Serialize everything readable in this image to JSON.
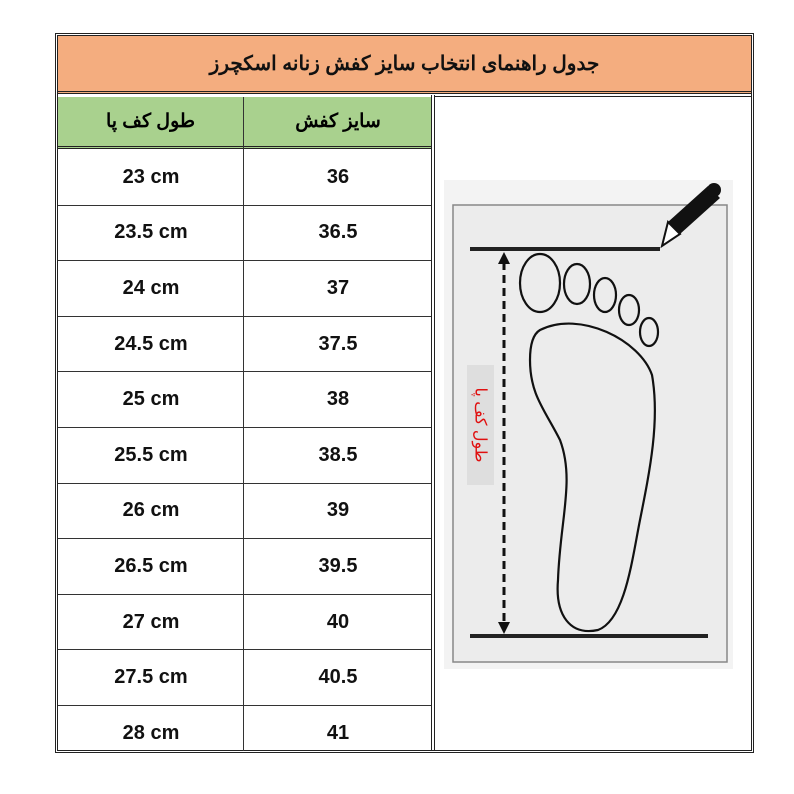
{
  "title": "جدول راهنمای انتخاب سایز کفش زنانه اسکچرز",
  "headers": {
    "foot_length": "طول کف پا",
    "shoe_size": "سایز کفش"
  },
  "rows": [
    {
      "foot_length": "23 cm",
      "shoe_size": "36"
    },
    {
      "foot_length": "23.5 cm",
      "shoe_size": "36.5"
    },
    {
      "foot_length": "24 cm",
      "shoe_size": "37"
    },
    {
      "foot_length": "24.5 cm",
      "shoe_size": "37.5"
    },
    {
      "foot_length": "25 cm",
      "shoe_size": "38"
    },
    {
      "foot_length": "25.5 cm",
      "shoe_size": "38.5"
    },
    {
      "foot_length": "26 cm",
      "shoe_size": "39"
    },
    {
      "foot_length": "26.5 cm",
      "shoe_size": "39.5"
    },
    {
      "foot_length": "27 cm",
      "shoe_size": "40"
    },
    {
      "foot_length": "27.5 cm",
      "shoe_size": "40.5"
    },
    {
      "foot_length": "28 cm",
      "shoe_size": "41"
    }
  ],
  "illustration": {
    "label": "طول کف پا",
    "label_color": "#e01010",
    "icons": [
      "pencil-icon",
      "foot-outline"
    ]
  },
  "colors": {
    "title_bg": "#f4ad7f",
    "header_bg": "#a9d18e"
  }
}
